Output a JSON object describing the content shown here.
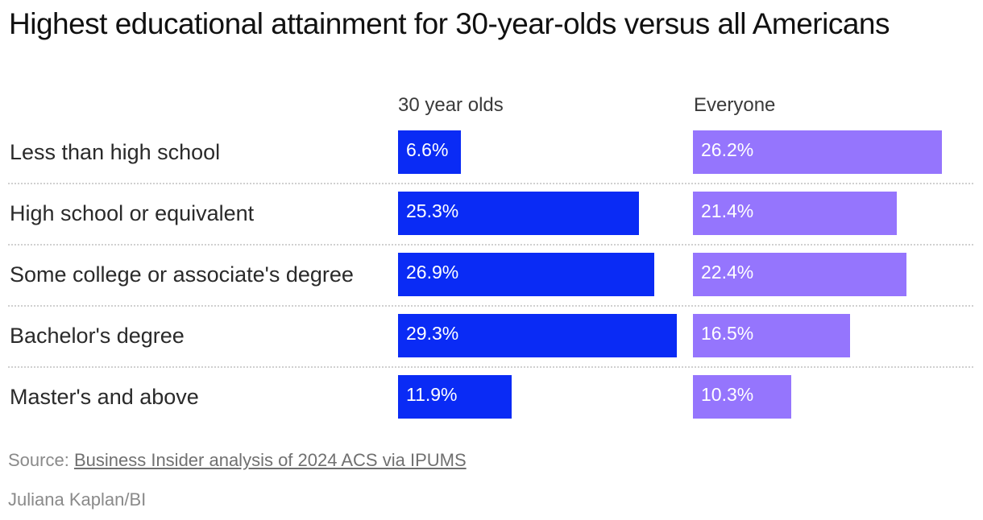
{
  "chart_data": {
    "type": "bar",
    "title": "Highest educational attainment for 30-year-olds versus all Americans",
    "categories": [
      "Less than high school",
      "High school or equivalent",
      "Some college or associate's degree",
      "Bachelor's degree",
      "Master's and above"
    ],
    "series": [
      {
        "name": "30 year olds",
        "values": [
          6.6,
          25.3,
          26.9,
          29.3,
          11.9
        ],
        "labels": [
          "6.6%",
          "25.3%",
          "26.9%",
          "29.3%",
          "11.9%"
        ],
        "color": "#0a2bf5"
      },
      {
        "name": "Everyone",
        "values": [
          26.2,
          21.4,
          22.4,
          16.5,
          10.3
        ],
        "labels": [
          "26.2%",
          "21.4%",
          "22.4%",
          "16.5%",
          "10.3%"
        ],
        "color": "#9575fd"
      }
    ],
    "xlabel": "",
    "ylabel": "",
    "xlim": [
      0,
      29.3
    ]
  },
  "footer": {
    "source_prefix": "Source:",
    "source_link": "Business Insider analysis of 2024 ACS via IPUMS",
    "credit": "Juliana Kaplan/BI"
  }
}
